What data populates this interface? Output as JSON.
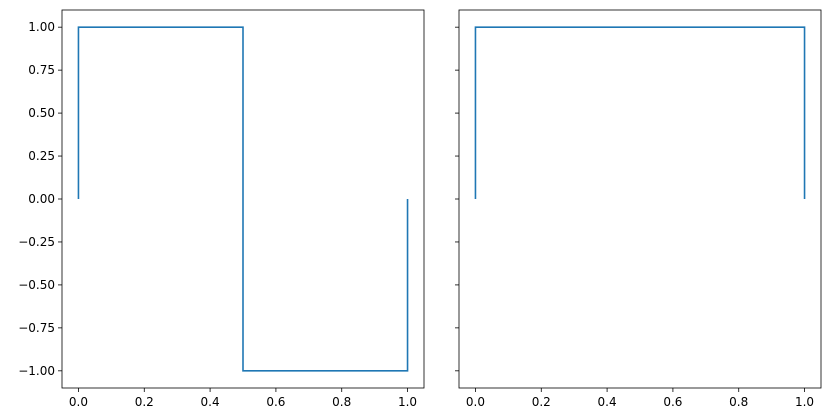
{
  "chart_data": [
    {
      "type": "line",
      "x": [
        0,
        0,
        0.5,
        0.5,
        1,
        1
      ],
      "series": [
        {
          "color": "#1f77b4",
          "values": [
            0,
            1,
            1,
            -1,
            -1,
            0
          ]
        }
      ],
      "xlim": [
        -0.05,
        1.05
      ],
      "ylim": [
        -1.1,
        1.1
      ],
      "xticks": [
        {
          "value": 0,
          "label": "0.0"
        },
        {
          "value": 0.2,
          "label": "0.2"
        },
        {
          "value": 0.4,
          "label": "0.4"
        },
        {
          "value": 0.6,
          "label": "0.6"
        },
        {
          "value": 0.8,
          "label": "0.8"
        },
        {
          "value": 1,
          "label": "1.0"
        }
      ],
      "yticks": [
        {
          "value": -1,
          "label": "−1.00"
        },
        {
          "value": -0.75,
          "label": "−0.75"
        },
        {
          "value": -0.5,
          "label": "−0.50"
        },
        {
          "value": -0.25,
          "label": "−0.25"
        },
        {
          "value": 0,
          "label": "0.00"
        },
        {
          "value": 0.25,
          "label": "0.25"
        },
        {
          "value": 0.5,
          "label": "0.50"
        },
        {
          "value": 0.75,
          "label": "0.75"
        },
        {
          "value": 1,
          "label": "1.00"
        }
      ]
    },
    {
      "type": "line",
      "x": [
        0,
        0,
        1,
        1
      ],
      "series": [
        {
          "color": "#1f77b4",
          "values": [
            0,
            1,
            1,
            0
          ]
        }
      ],
      "xlim": [
        -0.05,
        1.05
      ],
      "ylim": [
        -1.1,
        1.1
      ],
      "xticks": [
        {
          "value": 0,
          "label": "0.0"
        },
        {
          "value": 0.2,
          "label": "0.2"
        },
        {
          "value": 0.4,
          "label": "0.4"
        },
        {
          "value": 0.6,
          "label": "0.6"
        },
        {
          "value": 0.8,
          "label": "0.8"
        },
        {
          "value": 1,
          "label": "1.0"
        }
      ]
    }
  ]
}
